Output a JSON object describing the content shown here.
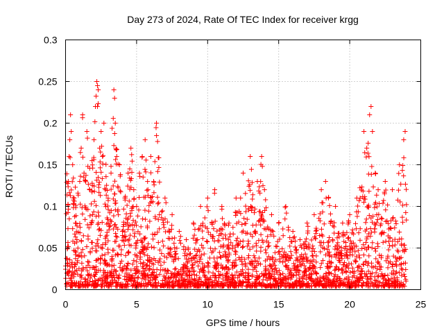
{
  "chart_data": {
    "type": "scatter",
    "title": "Day 273 of 2024, Rate Of TEC Index for receiver krgg",
    "xlabel": "GPS time / hours",
    "ylabel": "ROTI / TECUs",
    "xlim": [
      0,
      25
    ],
    "ylim": [
      0,
      0.3
    ],
    "xticks": [
      0,
      5,
      10,
      15,
      20,
      25
    ],
    "xtick_labels": [
      "0",
      "5",
      "10",
      "15",
      "20",
      "25"
    ],
    "yticks": [
      0,
      0.05,
      0.1,
      0.15,
      0.2,
      0.25,
      0.3
    ],
    "ytick_labels": [
      "0",
      "0.05",
      "0.1",
      "0.15",
      "0.2",
      "0.25",
      "0.3"
    ],
    "grid": true,
    "marker": "+",
    "series_color": "#ff0000",
    "series": [
      {
        "name": "ROTI",
        "points": [
          [
            0.1,
            0.02
          ],
          [
            0.15,
            0.05
          ],
          [
            0.2,
            0.13
          ],
          [
            0.25,
            0.16
          ],
          [
            0.3,
            0.18
          ],
          [
            0.35,
            0.21
          ],
          [
            0.4,
            0.19
          ],
          [
            0.5,
            0.15
          ],
          [
            0.6,
            0.11
          ],
          [
            0.7,
            0.08
          ],
          [
            0.8,
            0.06
          ],
          [
            0.9,
            0.04
          ],
          [
            1.0,
            0.13
          ],
          [
            1.1,
            0.17
          ],
          [
            1.2,
            0.21
          ],
          [
            1.3,
            0.14
          ],
          [
            1.5,
            0.19
          ],
          [
            1.7,
            0.12
          ],
          [
            1.9,
            0.09
          ],
          [
            2.0,
            0.18
          ],
          [
            2.1,
            0.22
          ],
          [
            2.2,
            0.25
          ],
          [
            2.25,
            0.245
          ],
          [
            2.3,
            0.24
          ],
          [
            2.4,
            0.17
          ],
          [
            2.5,
            0.19
          ],
          [
            2.6,
            0.16
          ],
          [
            2.7,
            0.2
          ],
          [
            2.8,
            0.12
          ],
          [
            3.0,
            0.08
          ],
          [
            3.2,
            0.14
          ],
          [
            3.4,
            0.24
          ],
          [
            3.45,
            0.23
          ],
          [
            3.5,
            0.2
          ],
          [
            3.6,
            0.16
          ],
          [
            3.8,
            0.15
          ],
          [
            4.0,
            0.07
          ],
          [
            4.2,
            0.11
          ],
          [
            4.4,
            0.14
          ],
          [
            4.6,
            0.17
          ],
          [
            4.8,
            0.12
          ],
          [
            5.0,
            0.1
          ],
          [
            5.2,
            0.14
          ],
          [
            5.4,
            0.16
          ],
          [
            5.6,
            0.18
          ],
          [
            5.8,
            0.12
          ],
          [
            6.0,
            0.16
          ],
          [
            6.2,
            0.13
          ],
          [
            6.4,
            0.2
          ],
          [
            6.6,
            0.09
          ],
          [
            7.0,
            0.11
          ],
          [
            7.5,
            0.09
          ],
          [
            8.0,
            0.07
          ],
          [
            8.5,
            0.06
          ],
          [
            9.0,
            0.08
          ],
          [
            9.5,
            0.1
          ],
          [
            10.0,
            0.11
          ],
          [
            10.5,
            0.12
          ],
          [
            11.0,
            0.1
          ],
          [
            11.5,
            0.08
          ],
          [
            12.0,
            0.11
          ],
          [
            12.5,
            0.14
          ],
          [
            13.0,
            0.16
          ],
          [
            13.5,
            0.13
          ],
          [
            13.8,
            0.16
          ],
          [
            14.0,
            0.12
          ],
          [
            14.5,
            0.09
          ],
          [
            15.0,
            0.08
          ],
          [
            15.5,
            0.1
          ],
          [
            16.0,
            0.07
          ],
          [
            16.5,
            0.06
          ],
          [
            17.0,
            0.08
          ],
          [
            17.5,
            0.09
          ],
          [
            18.0,
            0.12
          ],
          [
            18.3,
            0.13
          ],
          [
            18.5,
            0.11
          ],
          [
            19.0,
            0.1
          ],
          [
            19.5,
            0.08
          ],
          [
            20.0,
            0.09
          ],
          [
            20.5,
            0.11
          ],
          [
            21.0,
            0.19
          ],
          [
            21.2,
            0.17
          ],
          [
            21.4,
            0.21
          ],
          [
            21.5,
            0.22
          ],
          [
            21.6,
            0.19
          ],
          [
            21.8,
            0.14
          ],
          [
            22.0,
            0.12
          ],
          [
            22.5,
            0.13
          ],
          [
            23.0,
            0.12
          ],
          [
            23.5,
            0.15
          ],
          [
            23.8,
            0.18
          ],
          [
            23.9,
            0.19
          ]
        ]
      }
    ]
  }
}
